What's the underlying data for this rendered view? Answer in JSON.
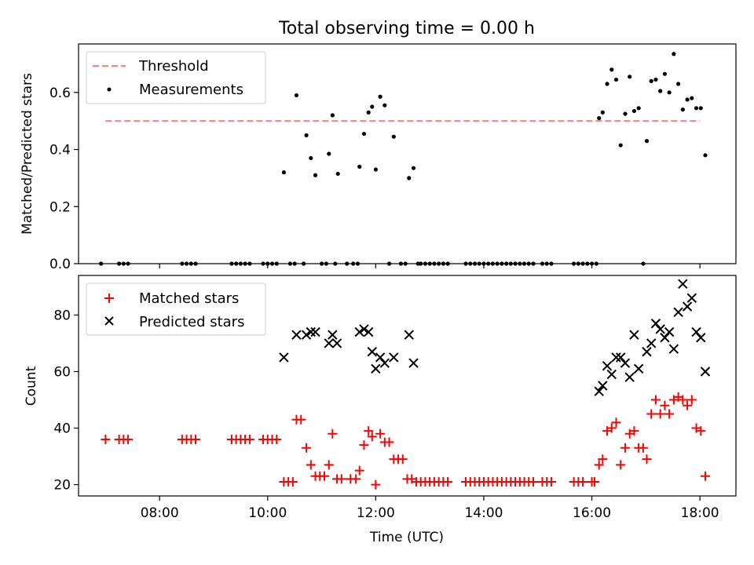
{
  "figure": {
    "title": "Total observing time = 0.00 h"
  },
  "chart_data": [
    {
      "type": "scatter",
      "panel": "top",
      "xlabel": "",
      "ylabel": "Matched/Predicted stars",
      "xlim": [
        "06:30",
        "18:40"
      ],
      "ylim": [
        0,
        0.77
      ],
      "yticks": [
        0.0,
        0.2,
        0.4,
        0.6
      ],
      "ytick_labels": [
        "0.0",
        "0.2",
        "0.4",
        "0.6"
      ],
      "xticks": [
        "08:00",
        "10:00",
        "12:00",
        "14:00",
        "16:00",
        "18:00"
      ],
      "grid": false,
      "legend": "top-left",
      "threshold": {
        "name": "Threshold",
        "value": 0.5,
        "x_range": [
          "07:00",
          "18:00"
        ],
        "color": "#ff7f7f",
        "style": "dashed"
      },
      "series": [
        {
          "name": "Measurements",
          "color": "#000000",
          "marker": "dot",
          "points": [
            [
              "06:55",
              0.0
            ],
            [
              "07:15",
              0.0
            ],
            [
              "07:20",
              0.0
            ],
            [
              "07:25",
              0.0
            ],
            [
              "08:25",
              0.0
            ],
            [
              "08:30",
              0.0
            ],
            [
              "08:35",
              0.0
            ],
            [
              "08:40",
              0.0
            ],
            [
              "09:20",
              0.0
            ],
            [
              "09:25",
              0.0
            ],
            [
              "09:30",
              0.0
            ],
            [
              "09:35",
              0.0
            ],
            [
              "09:40",
              0.0
            ],
            [
              "09:55",
              0.0
            ],
            [
              "10:00",
              0.0
            ],
            [
              "10:05",
              0.0
            ],
            [
              "10:10",
              0.0
            ],
            [
              "10:18",
              0.32
            ],
            [
              "10:25",
              0.0
            ],
            [
              "10:30",
              0.0
            ],
            [
              "10:32",
              0.59
            ],
            [
              "10:40",
              0.0
            ],
            [
              "10:43",
              0.45
            ],
            [
              "10:48",
              0.37
            ],
            [
              "10:53",
              0.31
            ],
            [
              "11:00",
              0.0
            ],
            [
              "11:05",
              0.0
            ],
            [
              "11:08",
              0.385
            ],
            [
              "11:12",
              0.52
            ],
            [
              "11:15",
              0.0
            ],
            [
              "11:18",
              0.315
            ],
            [
              "11:28",
              0.0
            ],
            [
              "11:35",
              0.0
            ],
            [
              "11:40",
              0.0
            ],
            [
              "11:42",
              0.34
            ],
            [
              "11:47",
              0.455
            ],
            [
              "11:52",
              0.53
            ],
            [
              "11:56",
              0.55
            ],
            [
              "12:00",
              0.33
            ],
            [
              "12:05",
              0.585
            ],
            [
              "12:10",
              0.555
            ],
            [
              "12:15",
              0.0
            ],
            [
              "12:20",
              0.445
            ],
            [
              "12:28",
              0.0
            ],
            [
              "12:33",
              0.0
            ],
            [
              "12:37",
              0.3
            ],
            [
              "12:42",
              0.335
            ],
            [
              "12:47",
              0.0
            ],
            [
              "12:50",
              0.0
            ],
            [
              "12:55",
              0.0
            ],
            [
              "13:00",
              0.0
            ],
            [
              "13:05",
              0.0
            ],
            [
              "13:10",
              0.0
            ],
            [
              "13:15",
              0.0
            ],
            [
              "13:20",
              0.0
            ],
            [
              "13:40",
              0.0
            ],
            [
              "13:45",
              0.0
            ],
            [
              "13:50",
              0.0
            ],
            [
              "13:55",
              0.0
            ],
            [
              "14:00",
              0.0
            ],
            [
              "14:05",
              0.0
            ],
            [
              "14:10",
              0.0
            ],
            [
              "14:15",
              0.0
            ],
            [
              "14:20",
              0.0
            ],
            [
              "14:25",
              0.0
            ],
            [
              "14:30",
              0.0
            ],
            [
              "14:35",
              0.0
            ],
            [
              "14:40",
              0.0
            ],
            [
              "14:45",
              0.0
            ],
            [
              "14:50",
              0.0
            ],
            [
              "14:55",
              0.0
            ],
            [
              "15:05",
              0.0
            ],
            [
              "15:10",
              0.0
            ],
            [
              "15:15",
              0.0
            ],
            [
              "15:40",
              0.0
            ],
            [
              "15:45",
              0.0
            ],
            [
              "15:50",
              0.0
            ],
            [
              "15:55",
              0.0
            ],
            [
              "16:00",
              0.0
            ],
            [
              "16:05",
              0.0
            ],
            [
              "16:08",
              0.51
            ],
            [
              "16:12",
              0.53
            ],
            [
              "16:17",
              0.63
            ],
            [
              "16:22",
              0.68
            ],
            [
              "16:27",
              0.645
            ],
            [
              "16:32",
              0.415
            ],
            [
              "16:37",
              0.525
            ],
            [
              "16:42",
              0.655
            ],
            [
              "16:47",
              0.535
            ],
            [
              "16:52",
              0.545
            ],
            [
              "16:57",
              0.0
            ],
            [
              "17:01",
              0.43
            ],
            [
              "17:06",
              0.64
            ],
            [
              "17:11",
              0.645
            ],
            [
              "17:16",
              0.605
            ],
            [
              "17:21",
              0.665
            ],
            [
              "17:26",
              0.6
            ],
            [
              "17:31",
              0.735
            ],
            [
              "17:36",
              0.63
            ],
            [
              "17:41",
              0.54
            ],
            [
              "17:46",
              0.575
            ],
            [
              "17:51",
              0.58
            ],
            [
              "17:56",
              0.545
            ],
            [
              "18:01",
              0.545
            ],
            [
              "18:06",
              0.38
            ]
          ]
        }
      ]
    },
    {
      "type": "scatter",
      "panel": "bottom",
      "xlabel": "Time (UTC)",
      "ylabel": "Count",
      "xlim": [
        "06:30",
        "18:40"
      ],
      "ylim": [
        16,
        94
      ],
      "yticks": [
        20,
        40,
        60,
        80
      ],
      "ytick_labels": [
        "20",
        "40",
        "60",
        "80"
      ],
      "xticks": [
        "08:00",
        "10:00",
        "12:00",
        "14:00",
        "16:00",
        "18:00"
      ],
      "grid": false,
      "legend": "top-left",
      "series": [
        {
          "name": "Matched stars",
          "color": "#ff0000",
          "marker": "plus",
          "points": [
            [
              "07:00",
              36
            ],
            [
              "07:15",
              36
            ],
            [
              "07:20",
              36
            ],
            [
              "07:25",
              36
            ],
            [
              "08:25",
              36
            ],
            [
              "08:30",
              36
            ],
            [
              "08:35",
              36
            ],
            [
              "08:40",
              36
            ],
            [
              "09:20",
              36
            ],
            [
              "09:25",
              36
            ],
            [
              "09:30",
              36
            ],
            [
              "09:35",
              36
            ],
            [
              "09:40",
              36
            ],
            [
              "09:55",
              36
            ],
            [
              "10:00",
              36
            ],
            [
              "10:05",
              36
            ],
            [
              "10:10",
              36
            ],
            [
              "10:18",
              21
            ],
            [
              "10:23",
              21
            ],
            [
              "10:28",
              21
            ],
            [
              "10:32",
              43
            ],
            [
              "10:37",
              43
            ],
            [
              "10:43",
              33
            ],
            [
              "10:48",
              27
            ],
            [
              "10:53",
              23
            ],
            [
              "10:58",
              23
            ],
            [
              "11:03",
              23
            ],
            [
              "11:08",
              27
            ],
            [
              "11:12",
              38
            ],
            [
              "11:17",
              22
            ],
            [
              "11:22",
              22
            ],
            [
              "11:32",
              22
            ],
            [
              "11:38",
              22
            ],
            [
              "11:42",
              25
            ],
            [
              "11:47",
              34
            ],
            [
              "11:52",
              39
            ],
            [
              "11:56",
              37
            ],
            [
              "12:00",
              20
            ],
            [
              "12:05",
              38
            ],
            [
              "12:10",
              35
            ],
            [
              "12:15",
              35
            ],
            [
              "12:20",
              29
            ],
            [
              "12:25",
              29
            ],
            [
              "12:30",
              29
            ],
            [
              "12:35",
              22
            ],
            [
              "12:40",
              22
            ],
            [
              "12:45",
              21
            ],
            [
              "12:50",
              21
            ],
            [
              "12:55",
              21
            ],
            [
              "13:00",
              21
            ],
            [
              "13:05",
              21
            ],
            [
              "13:10",
              21
            ],
            [
              "13:15",
              21
            ],
            [
              "13:20",
              21
            ],
            [
              "13:40",
              21
            ],
            [
              "13:45",
              21
            ],
            [
              "13:50",
              21
            ],
            [
              "13:55",
              21
            ],
            [
              "14:00",
              21
            ],
            [
              "14:05",
              21
            ],
            [
              "14:10",
              21
            ],
            [
              "14:15",
              21
            ],
            [
              "14:20",
              21
            ],
            [
              "14:25",
              21
            ],
            [
              "14:30",
              21
            ],
            [
              "14:35",
              21
            ],
            [
              "14:40",
              21
            ],
            [
              "14:45",
              21
            ],
            [
              "14:50",
              21
            ],
            [
              "14:55",
              21
            ],
            [
              "15:05",
              21
            ],
            [
              "15:10",
              21
            ],
            [
              "15:15",
              21
            ],
            [
              "15:40",
              21
            ],
            [
              "15:45",
              21
            ],
            [
              "15:50",
              21
            ],
            [
              "16:00",
              21
            ],
            [
              "16:03",
              21
            ],
            [
              "16:08",
              27
            ],
            [
              "16:12",
              29
            ],
            [
              "16:17",
              39
            ],
            [
              "16:22",
              40
            ],
            [
              "16:27",
              42
            ],
            [
              "16:32",
              27
            ],
            [
              "16:37",
              33
            ],
            [
              "16:42",
              38
            ],
            [
              "16:47",
              39
            ],
            [
              "16:52",
              33
            ],
            [
              "16:57",
              33
            ],
            [
              "17:01",
              29
            ],
            [
              "17:06",
              45
            ],
            [
              "17:11",
              50
            ],
            [
              "17:16",
              45
            ],
            [
              "17:21",
              48
            ],
            [
              "17:26",
              45
            ],
            [
              "17:31",
              50
            ],
            [
              "17:36",
              51
            ],
            [
              "17:41",
              50
            ],
            [
              "17:46",
              48
            ],
            [
              "17:51",
              50
            ],
            [
              "17:56",
              40
            ],
            [
              "18:01",
              39
            ],
            [
              "18:06",
              23
            ]
          ]
        },
        {
          "name": "Predicted stars",
          "color": "#000000",
          "marker": "x",
          "points": [
            [
              "10:18",
              65
            ],
            [
              "10:32",
              73
            ],
            [
              "10:43",
              73
            ],
            [
              "10:48",
              74
            ],
            [
              "10:53",
              74
            ],
            [
              "11:08",
              70
            ],
            [
              "11:12",
              73
            ],
            [
              "11:17",
              70
            ],
            [
              "11:42",
              74
            ],
            [
              "11:47",
              75
            ],
            [
              "11:52",
              74
            ],
            [
              "11:56",
              67
            ],
            [
              "12:00",
              61
            ],
            [
              "12:05",
              65
            ],
            [
              "12:10",
              63
            ],
            [
              "12:20",
              65
            ],
            [
              "12:37",
              73
            ],
            [
              "12:42",
              63
            ],
            [
              "16:08",
              53
            ],
            [
              "16:12",
              55
            ],
            [
              "16:17",
              62
            ],
            [
              "16:22",
              59
            ],
            [
              "16:27",
              65
            ],
            [
              "16:32",
              65
            ],
            [
              "16:37",
              63
            ],
            [
              "16:42",
              58
            ],
            [
              "16:47",
              73
            ],
            [
              "16:52",
              61
            ],
            [
              "17:01",
              67
            ],
            [
              "17:06",
              70
            ],
            [
              "17:11",
              77
            ],
            [
              "17:16",
              75
            ],
            [
              "17:21",
              72
            ],
            [
              "17:26",
              74
            ],
            [
              "17:31",
              68
            ],
            [
              "17:36",
              81
            ],
            [
              "17:41",
              91
            ],
            [
              "17:46",
              83
            ],
            [
              "17:51",
              86
            ],
            [
              "17:56",
              74
            ],
            [
              "18:01",
              72
            ],
            [
              "18:06",
              60
            ]
          ]
        }
      ]
    }
  ]
}
